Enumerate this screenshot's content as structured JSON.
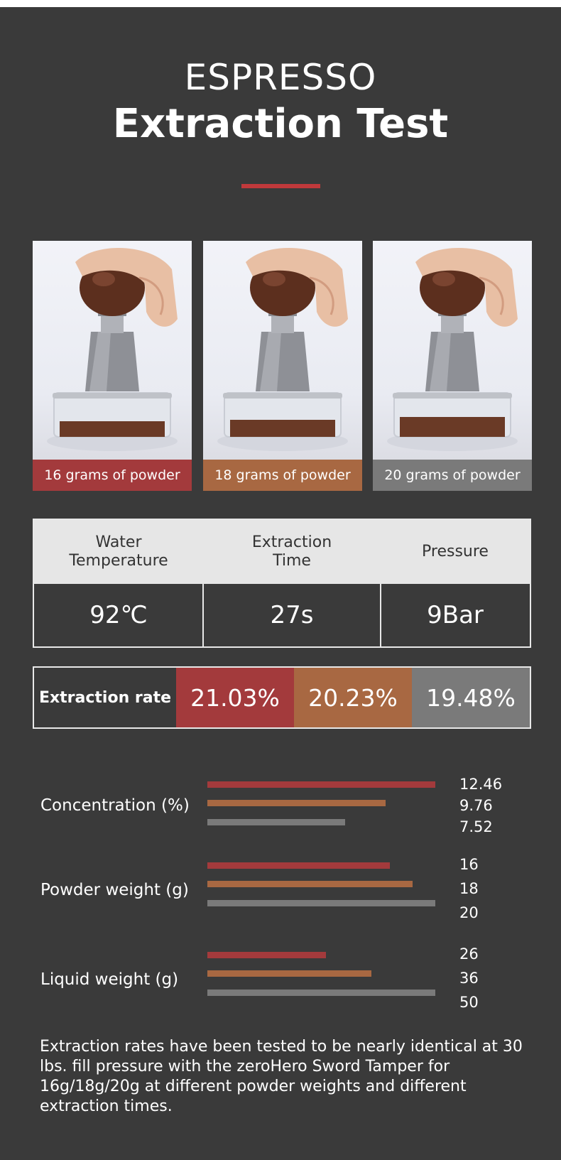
{
  "header": {
    "eyebrow": "ESPRESSO",
    "title": "Extraction Test"
  },
  "colors": {
    "red": "#a33a3c",
    "copper": "#a86842",
    "gray": "#7a7a7a",
    "accent": "#c0393b"
  },
  "photos": [
    {
      "caption": "16 grams of powder"
    },
    {
      "caption": "18 grams of powder"
    },
    {
      "caption": "20 grams of powder"
    }
  ],
  "params": {
    "headers": [
      "Water\nTemperature",
      "Extraction\nTime",
      "Pressure"
    ],
    "values": [
      "92℃",
      "27s",
      "9Bar"
    ]
  },
  "extraction": {
    "label": "Extraction rate",
    "values": [
      "21.03%",
      "20.23%",
      "19.48%"
    ]
  },
  "chart_data": {
    "type": "bar",
    "orientation": "horizontal",
    "grid": false,
    "groups": [
      {
        "label": "Concentration (%)",
        "values": [
          12.46,
          9.76,
          7.52
        ],
        "labels": [
          "12.46",
          "9.76",
          "7.52"
        ]
      },
      {
        "label": "Powder weight (g)",
        "values": [
          16,
          18,
          20
        ],
        "labels": [
          "16",
          "18",
          "20"
        ]
      },
      {
        "label": "Liquid weight (g)",
        "values": [
          26,
          36,
          50
        ],
        "labels": [
          "26",
          "36",
          "50"
        ]
      }
    ]
  },
  "note": "Extraction rates have been tested to be nearly identical at 30 lbs. fill pressure with the zeroHero Sword Tamper for 16g/18g/20g at different powder weights and different extraction times."
}
